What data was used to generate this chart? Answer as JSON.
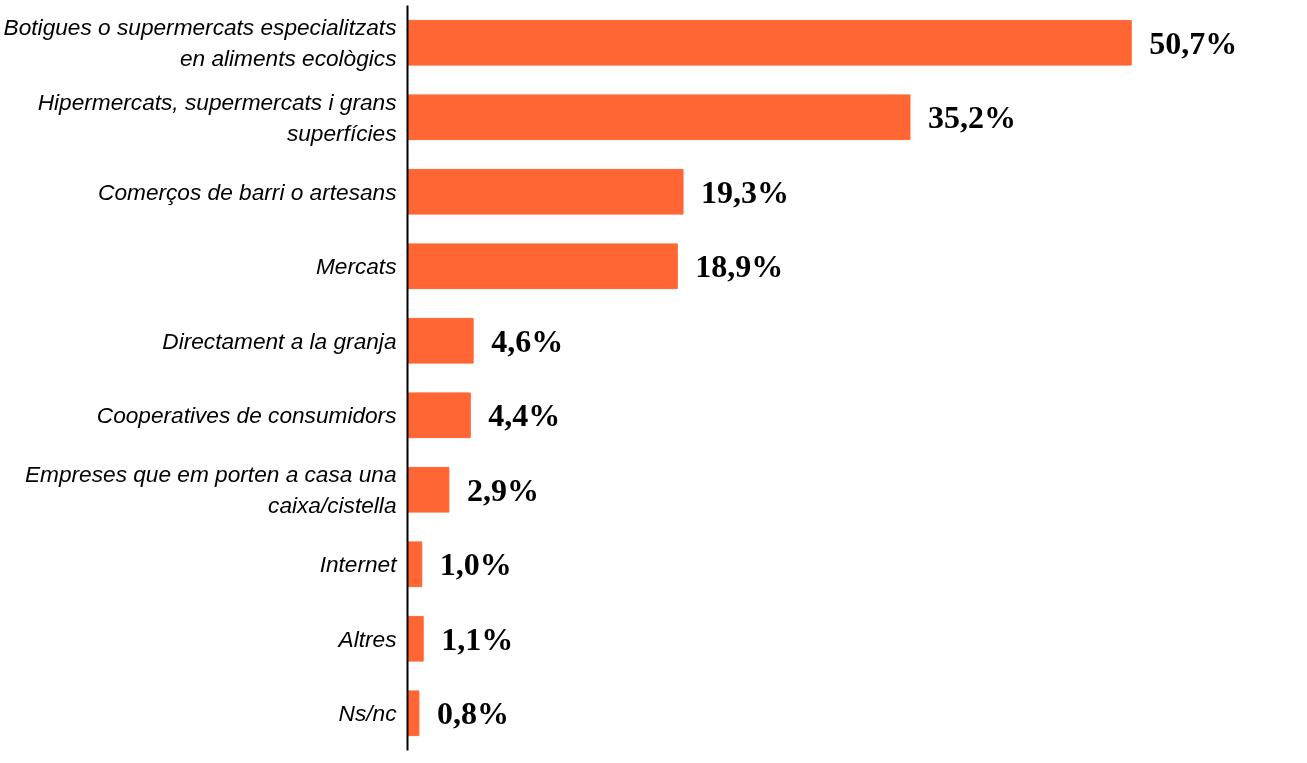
{
  "chart_data": {
    "type": "bar",
    "orientation": "horizontal",
    "color": "#ff6633",
    "categories": [
      "Botigues o supermercats especialitzats en aliments ecològics",
      "Hipermercats, supermercats i grans superfícies",
      "Comerços de barri o artesans",
      "Mercats",
      "Directament a la granja",
      "Cooperatives de consumidors",
      "Empreses que em porten a casa una caixa/cistella",
      "Internet",
      "Altres",
      "Ns/nc"
    ],
    "values": [
      50.7,
      35.2,
      19.3,
      18.9,
      4.6,
      4.4,
      2.9,
      1.0,
      1.1,
      0.8
    ],
    "value_labels": [
      "50,7%",
      "35,2%",
      "19,3%",
      "18,9%",
      "4,6%",
      "4,4%",
      "2,9%",
      "1,0%",
      "1,1%",
      "0,8%"
    ]
  }
}
